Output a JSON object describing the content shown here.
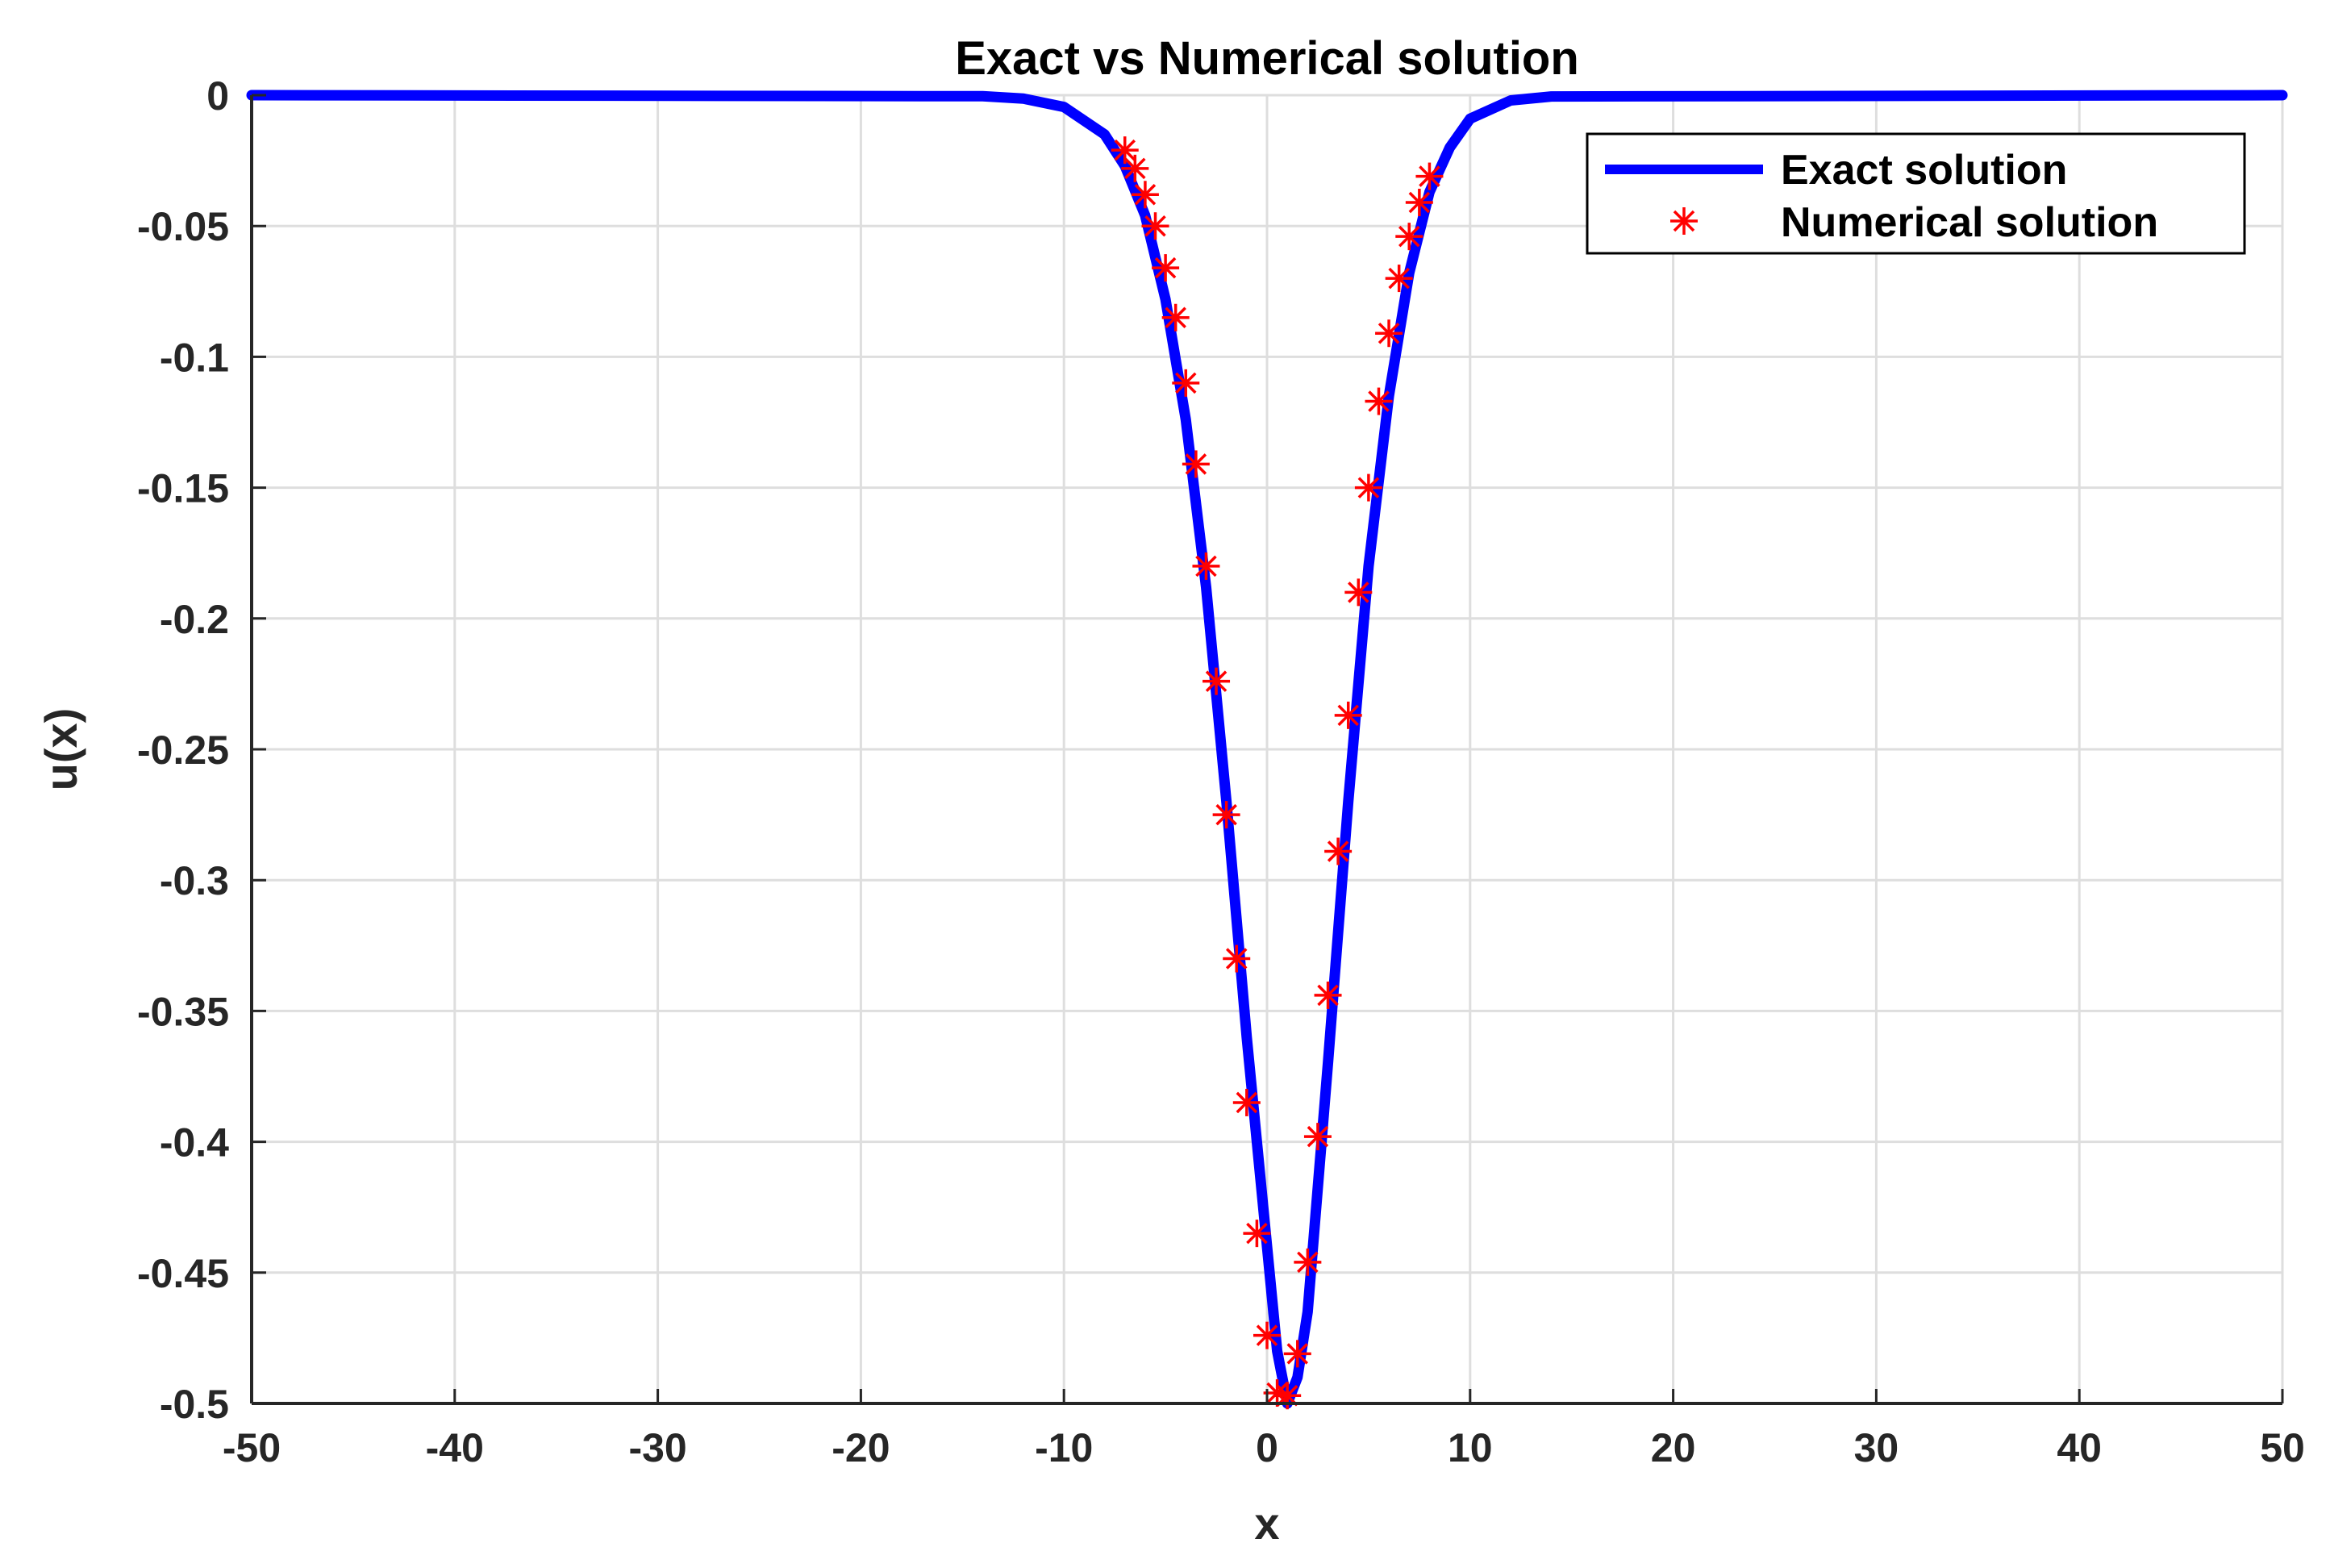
{
  "chart_data": {
    "type": "line",
    "title": "Exact vs Numerical solution",
    "xlabel": "x",
    "ylabel": "u(x)",
    "xlim": [
      -50,
      50
    ],
    "ylim": [
      -0.5,
      0
    ],
    "xticks": [
      -50,
      -40,
      -30,
      -20,
      -10,
      0,
      10,
      20,
      30,
      40,
      50
    ],
    "xtick_labels": [
      "-50",
      "-40",
      "-30",
      "-20",
      "-10",
      "0",
      "10",
      "20",
      "30",
      "40",
      "50"
    ],
    "yticks": [
      0,
      -0.05,
      -0.1,
      -0.15,
      -0.2,
      -0.25,
      -0.3,
      -0.35,
      -0.4,
      -0.45,
      -0.5
    ],
    "ytick_labels": [
      "0",
      "-0.05",
      "-0.1",
      "-0.15",
      "-0.2",
      "-0.25",
      "-0.3",
      "-0.35",
      "-0.4",
      "-0.45",
      "-0.5"
    ],
    "grid": true,
    "legend_position": "top-right",
    "legend": [
      "Exact solution",
      "Numerical solution"
    ],
    "series": [
      {
        "name": "Exact solution",
        "style": "line",
        "color": "#0000ff",
        "x": [
          -50,
          -14,
          -12,
          -10,
          -8,
          -7,
          -6,
          -5,
          -4,
          -3,
          -2,
          -1,
          0,
          0.5,
          1,
          1.5,
          2,
          3,
          4,
          5,
          6,
          7,
          8,
          9,
          10,
          12,
          14,
          50
        ],
        "y": [
          0,
          -0.0004,
          -0.0013,
          -0.0045,
          -0.015,
          -0.027,
          -0.046,
          -0.078,
          -0.124,
          -0.188,
          -0.27,
          -0.36,
          -0.44,
          -0.48,
          -0.5,
          -0.49,
          -0.465,
          -0.37,
          -0.27,
          -0.18,
          -0.115,
          -0.068,
          -0.037,
          -0.02,
          -0.009,
          -0.002,
          -0.0005,
          0
        ]
      },
      {
        "name": "Numerical solution",
        "style": "marker",
        "marker": "asterisk",
        "color": "#ff0000",
        "x": [
          -7.0,
          -6.5,
          -6.0,
          -5.5,
          -5.0,
          -4.5,
          -4.0,
          -3.5,
          -3.0,
          -2.5,
          -2.0,
          -1.5,
          -1.0,
          -0.5,
          0.0,
          0.5,
          1.0,
          1.5,
          2.0,
          2.5,
          3.0,
          3.5,
          4.0,
          4.5,
          5.0,
          5.5,
          6.0,
          6.5,
          7.0,
          7.5,
          8.0
        ],
        "y": [
          -0.021,
          -0.028,
          -0.038,
          -0.05,
          -0.066,
          -0.085,
          -0.11,
          -0.141,
          -0.18,
          -0.224,
          -0.275,
          -0.33,
          -0.385,
          -0.435,
          -0.474,
          -0.496,
          -0.497,
          -0.481,
          -0.446,
          -0.398,
          -0.344,
          -0.289,
          -0.237,
          -0.19,
          -0.15,
          -0.117,
          -0.091,
          -0.07,
          -0.054,
          -0.041,
          -0.031
        ]
      }
    ]
  }
}
